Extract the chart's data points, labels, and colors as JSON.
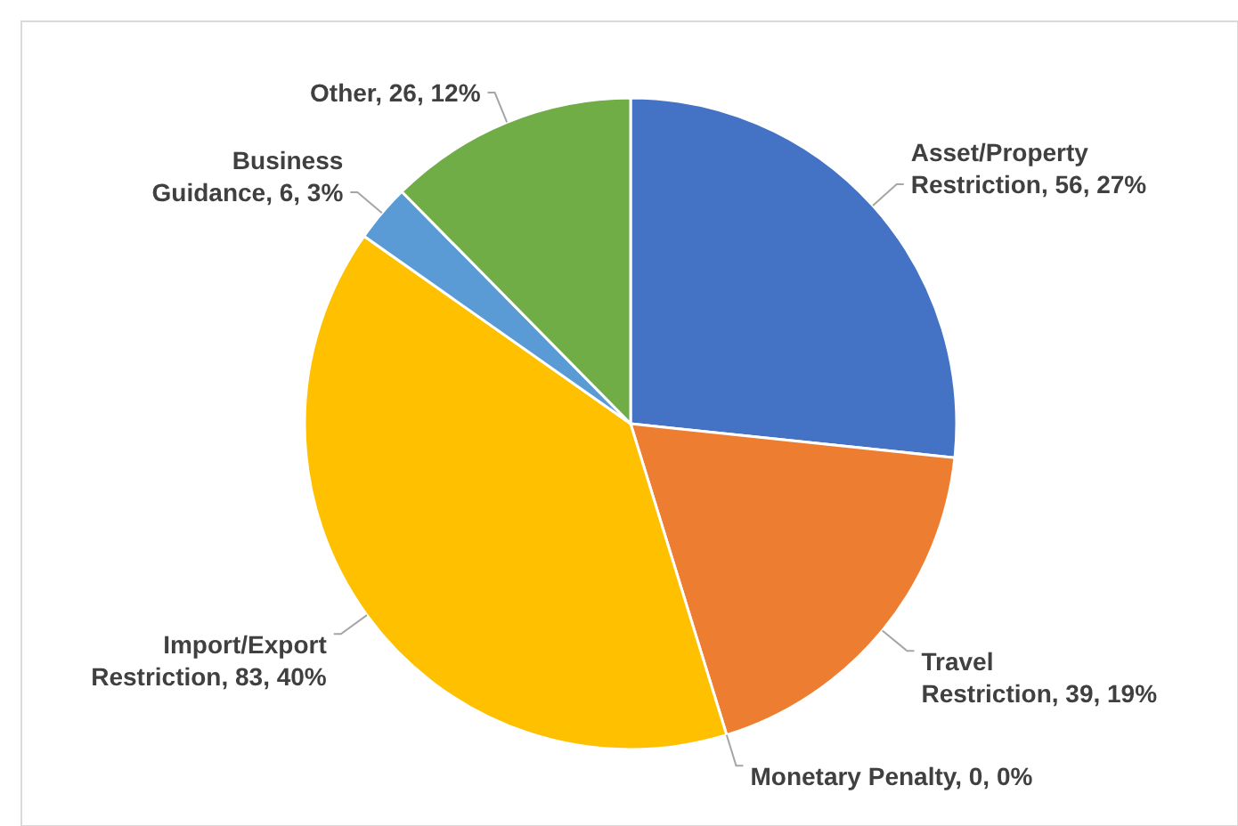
{
  "chart_data": {
    "type": "pie",
    "categories": [
      "Asset/Property Restriction",
      "Travel Restriction",
      "Monetary Penalty",
      "Import/Export Restriction",
      "Business Guidance",
      "Other"
    ],
    "values": [
      56,
      39,
      0,
      83,
      6,
      26
    ],
    "value_labels": [
      "56, 27%",
      "39, 19%",
      "0, 0%",
      "83, 40%",
      "6, 3%",
      "26, 12%"
    ],
    "colors": [
      "#4472c4",
      "#ed7d31",
      null,
      "#ffc000",
      "#5b9bd5",
      "#70ad47"
    ]
  }
}
